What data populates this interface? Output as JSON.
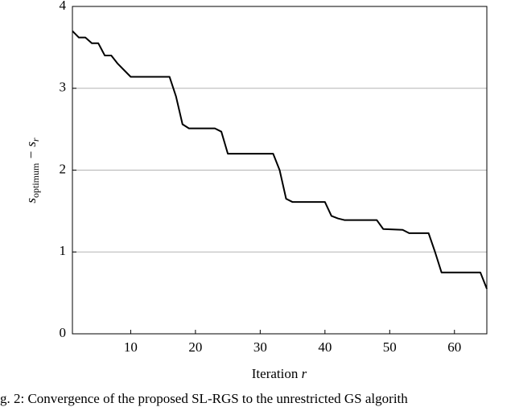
{
  "chart_data": {
    "type": "line",
    "xlabel": [
      "Iteration ",
      "r"
    ],
    "ylabel": [
      "s",
      "optimum",
      " − s",
      "r"
    ],
    "caption": "g. 2: Convergence of the proposed SL-RGS to the unrestricted GS algorith",
    "x": [
      1,
      2,
      3,
      4,
      5,
      6,
      7,
      8,
      9,
      10,
      16,
      17,
      18,
      19,
      23,
      24,
      25,
      32,
      33,
      34,
      35,
      40,
      41,
      42,
      43,
      48,
      49,
      52,
      53,
      56,
      57,
      58,
      64,
      65
    ],
    "series": [
      {
        "color": "#000000",
        "values": [
          3.7,
          3.62,
          3.62,
          3.55,
          3.55,
          3.4,
          3.4,
          3.3,
          3.22,
          3.14,
          3.14,
          2.9,
          2.56,
          2.51,
          2.51,
          2.47,
          2.2,
          2.2,
          2.0,
          1.65,
          1.61,
          1.61,
          1.44,
          1.41,
          1.39,
          1.39,
          1.28,
          1.27,
          1.23,
          1.23,
          1.0,
          0.75,
          0.75,
          0.55
        ]
      }
    ],
    "xlim": [
      1,
      65
    ],
    "ylim": [
      0,
      4
    ],
    "xticks": [
      10,
      20,
      30,
      40,
      50,
      60
    ],
    "yticks": [
      0,
      1,
      2,
      3,
      4
    ],
    "grid": true
  }
}
